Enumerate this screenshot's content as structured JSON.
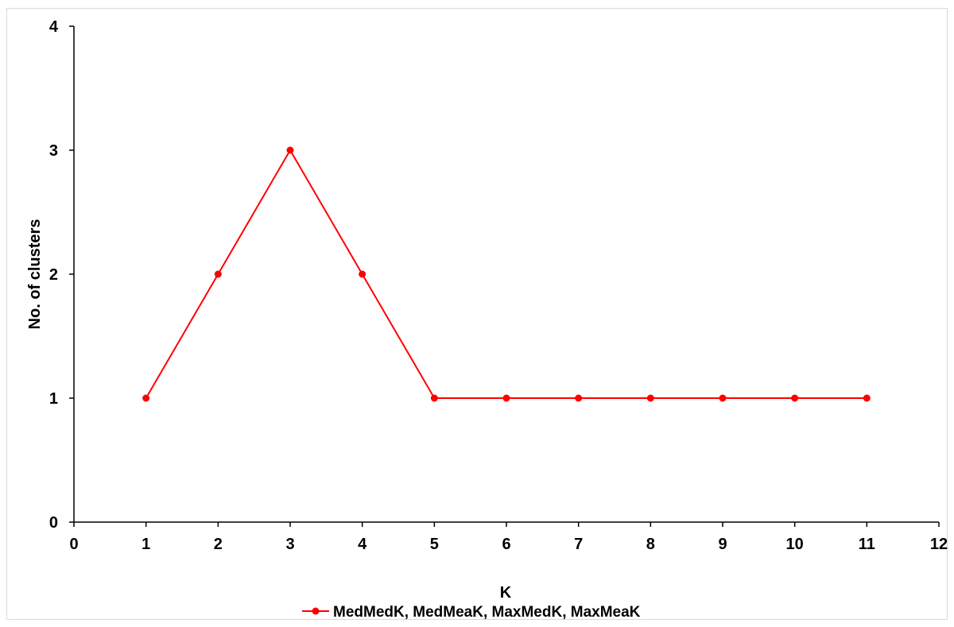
{
  "chart_data": {
    "type": "line",
    "title": "",
    "xlabel": "K",
    "ylabel": "No. of clusters",
    "xlim": [
      0,
      12
    ],
    "ylim": [
      0,
      4
    ],
    "x_ticks": [
      0,
      1,
      2,
      3,
      4,
      5,
      6,
      7,
      8,
      9,
      10,
      11,
      12
    ],
    "y_ticks": [
      0,
      1,
      2,
      3,
      4
    ],
    "grid": false,
    "legend_position": "bottom",
    "x": [
      1,
      2,
      3,
      4,
      5,
      6,
      7,
      8,
      9,
      10,
      11
    ],
    "series": [
      {
        "name": "MedMedK, MedMeaK, MaxMedK, MaxMeaK",
        "color": "#ff0000",
        "marker": "circle",
        "values": [
          1,
          2,
          3,
          2,
          1,
          1,
          1,
          1,
          1,
          1,
          1
        ]
      }
    ]
  }
}
